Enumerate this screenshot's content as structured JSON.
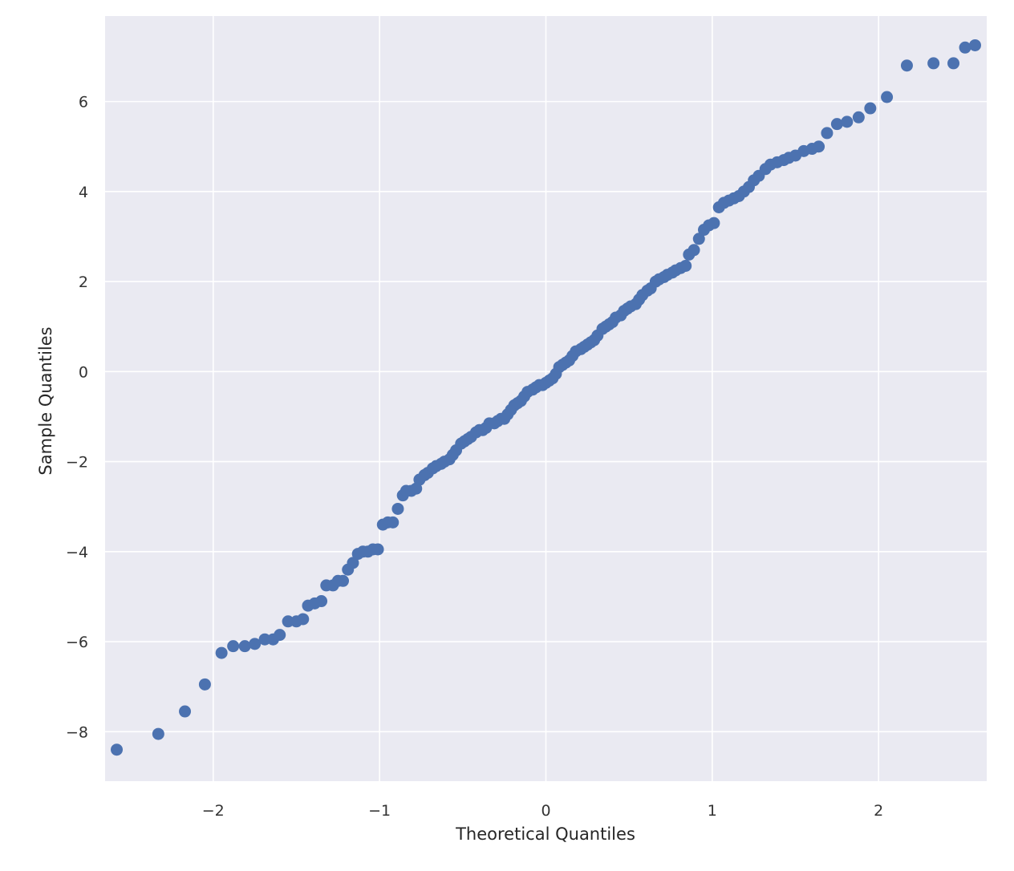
{
  "chart_data": {
    "type": "scatter",
    "title": "",
    "xlabel": "Theoretical Quantiles",
    "ylabel": "Sample Quantiles",
    "xlim": [
      -2.65,
      2.65
    ],
    "ylim": [
      -9.1,
      7.9
    ],
    "grid": true,
    "x_ticks": [
      -2,
      -1,
      0,
      1,
      2
    ],
    "x_tick_labels": [
      "−2",
      "−1",
      "0",
      "1",
      "2"
    ],
    "y_ticks": [
      -8,
      -6,
      -4,
      -2,
      0,
      2,
      4,
      6
    ],
    "y_tick_labels": [
      "−8",
      "−6",
      "−4",
      "−2",
      "0",
      "2",
      "4",
      "6"
    ],
    "marker_color": "#4c72b0",
    "background_color": "#eaeaf2",
    "grid_color": "#ffffff",
    "points": [
      [
        -2.58,
        -8.4
      ],
      [
        -2.33,
        -8.05
      ],
      [
        -2.17,
        -7.55
      ],
      [
        -2.05,
        -6.95
      ],
      [
        -1.95,
        -6.25
      ],
      [
        -1.88,
        -6.1
      ],
      [
        -1.81,
        -6.1
      ],
      [
        -1.75,
        -6.05
      ],
      [
        -1.69,
        -5.95
      ],
      [
        -1.64,
        -5.95
      ],
      [
        -1.6,
        -5.85
      ],
      [
        -1.55,
        -5.55
      ],
      [
        -1.5,
        -5.55
      ],
      [
        -1.46,
        -5.5
      ],
      [
        -1.43,
        -5.2
      ],
      [
        -1.39,
        -5.15
      ],
      [
        -1.35,
        -5.1
      ],
      [
        -1.32,
        -4.75
      ],
      [
        -1.28,
        -4.75
      ],
      [
        -1.25,
        -4.65
      ],
      [
        -1.22,
        -4.65
      ],
      [
        -1.19,
        -4.4
      ],
      [
        -1.16,
        -4.25
      ],
      [
        -1.13,
        -4.05
      ],
      [
        -1.1,
        -4.0
      ],
      [
        -1.07,
        -4.0
      ],
      [
        -1.04,
        -3.95
      ],
      [
        -1.01,
        -3.95
      ],
      [
        -0.98,
        -3.4
      ],
      [
        -0.95,
        -3.35
      ],
      [
        -0.92,
        -3.35
      ],
      [
        -0.89,
        -3.05
      ],
      [
        -0.86,
        -2.75
      ],
      [
        -0.84,
        -2.65
      ],
      [
        -0.81,
        -2.65
      ],
      [
        -0.78,
        -2.6
      ],
      [
        -0.76,
        -2.4
      ],
      [
        -0.73,
        -2.3
      ],
      [
        -0.71,
        -2.25
      ],
      [
        -0.68,
        -2.15
      ],
      [
        -0.66,
        -2.1
      ],
      [
        -0.63,
        -2.05
      ],
      [
        -0.61,
        -2.0
      ],
      [
        -0.58,
        -1.95
      ],
      [
        -0.56,
        -1.85
      ],
      [
        -0.54,
        -1.75
      ],
      [
        -0.51,
        -1.6
      ],
      [
        -0.49,
        -1.55
      ],
      [
        -0.47,
        -1.5
      ],
      [
        -0.45,
        -1.45
      ],
      [
        -0.42,
        -1.35
      ],
      [
        -0.4,
        -1.3
      ],
      [
        -0.38,
        -1.3
      ],
      [
        -0.36,
        -1.25
      ],
      [
        -0.34,
        -1.15
      ],
      [
        -0.31,
        -1.15
      ],
      [
        -0.29,
        -1.1
      ],
      [
        -0.27,
        -1.05
      ],
      [
        -0.25,
        -1.05
      ],
      [
        -0.23,
        -0.95
      ],
      [
        -0.21,
        -0.85
      ],
      [
        -0.19,
        -0.75
      ],
      [
        -0.17,
        -0.7
      ],
      [
        -0.15,
        -0.65
      ],
      [
        -0.13,
        -0.55
      ],
      [
        -0.11,
        -0.45
      ],
      [
        -0.08,
        -0.4
      ],
      [
        -0.06,
        -0.35
      ],
      [
        -0.04,
        -0.3
      ],
      [
        -0.02,
        -0.3
      ],
      [
        0.0,
        -0.25
      ],
      [
        0.02,
        -0.2
      ],
      [
        0.04,
        -0.15
      ],
      [
        0.06,
        -0.05
      ],
      [
        0.08,
        0.1
      ],
      [
        0.1,
        0.15
      ],
      [
        0.12,
        0.2
      ],
      [
        0.14,
        0.25
      ],
      [
        0.16,
        0.35
      ],
      [
        0.18,
        0.45
      ],
      [
        0.21,
        0.5
      ],
      [
        0.23,
        0.55
      ],
      [
        0.25,
        0.6
      ],
      [
        0.27,
        0.65
      ],
      [
        0.29,
        0.7
      ],
      [
        0.31,
        0.8
      ],
      [
        0.34,
        0.95
      ],
      [
        0.36,
        1.0
      ],
      [
        0.38,
        1.05
      ],
      [
        0.4,
        1.1
      ],
      [
        0.42,
        1.2
      ],
      [
        0.45,
        1.25
      ],
      [
        0.47,
        1.35
      ],
      [
        0.49,
        1.4
      ],
      [
        0.51,
        1.45
      ],
      [
        0.54,
        1.5
      ],
      [
        0.56,
        1.6
      ],
      [
        0.58,
        1.7
      ],
      [
        0.61,
        1.8
      ],
      [
        0.63,
        1.85
      ],
      [
        0.66,
        2.0
      ],
      [
        0.68,
        2.05
      ],
      [
        0.71,
        2.1
      ],
      [
        0.73,
        2.15
      ],
      [
        0.76,
        2.2
      ],
      [
        0.78,
        2.25
      ],
      [
        0.81,
        2.3
      ],
      [
        0.84,
        2.35
      ],
      [
        0.86,
        2.6
      ],
      [
        0.89,
        2.7
      ],
      [
        0.92,
        2.95
      ],
      [
        0.95,
        3.15
      ],
      [
        0.98,
        3.25
      ],
      [
        1.01,
        3.3
      ],
      [
        1.04,
        3.65
      ],
      [
        1.07,
        3.75
      ],
      [
        1.1,
        3.8
      ],
      [
        1.13,
        3.85
      ],
      [
        1.16,
        3.9
      ],
      [
        1.19,
        4.0
      ],
      [
        1.22,
        4.1
      ],
      [
        1.25,
        4.25
      ],
      [
        1.28,
        4.35
      ],
      [
        1.32,
        4.5
      ],
      [
        1.35,
        4.6
      ],
      [
        1.39,
        4.65
      ],
      [
        1.43,
        4.7
      ],
      [
        1.46,
        4.75
      ],
      [
        1.5,
        4.8
      ],
      [
        1.55,
        4.9
      ],
      [
        1.6,
        4.95
      ],
      [
        1.64,
        5.0
      ],
      [
        1.69,
        5.3
      ],
      [
        1.75,
        5.5
      ],
      [
        1.81,
        5.55
      ],
      [
        1.88,
        5.65
      ],
      [
        1.95,
        5.85
      ],
      [
        2.05,
        6.1
      ],
      [
        2.17,
        6.8
      ],
      [
        2.33,
        6.85
      ],
      [
        2.45,
        6.85
      ],
      [
        2.52,
        7.2
      ],
      [
        2.58,
        7.25
      ]
    ]
  }
}
